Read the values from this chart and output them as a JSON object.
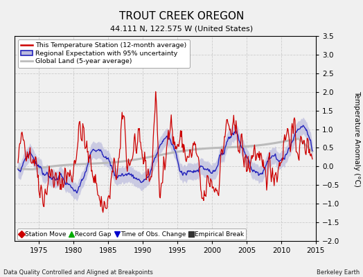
{
  "title": "TROUT CREEK OREGON",
  "subtitle": "44.111 N, 122.575 W (United States)",
  "footer_left": "Data Quality Controlled and Aligned at Breakpoints",
  "footer_right": "Berkeley Earth",
  "ylabel": "Temperature Anomaly (°C)",
  "xlim": [
    1971.5,
    2015
  ],
  "ylim": [
    -2.0,
    3.5
  ],
  "yticks": [
    -2.0,
    -1.5,
    -1.0,
    -0.5,
    0.0,
    0.5,
    1.0,
    1.5,
    2.0,
    2.5,
    3.0,
    3.5
  ],
  "xticks": [
    1975,
    1980,
    1985,
    1990,
    1995,
    2000,
    2005,
    2010,
    2015
  ],
  "bg_color": "#f0f0f0",
  "plot_bg": "#f0f0f0",
  "grid_color": "#cccccc",
  "station_color": "#cc0000",
  "regional_color": "#2222bb",
  "regional_fill_color": "#bbbbdd",
  "global_color": "#bbbbbb",
  "legend1_items": [
    {
      "label": "This Temperature Station (12-month average)",
      "color": "#cc0000"
    },
    {
      "label": "Regional Expectation with 95% uncertainty",
      "color": "#2222bb"
    },
    {
      "label": "Global Land (5-year average)",
      "color": "#bbbbbb"
    }
  ],
  "legend2_items": [
    {
      "label": "Station Move",
      "marker": "D",
      "color": "#cc0000"
    },
    {
      "label": "Record Gap",
      "marker": "^",
      "color": "#00aa00"
    },
    {
      "label": "Time of Obs. Change",
      "marker": "v",
      "color": "#0000cc"
    },
    {
      "label": "Empirical Break",
      "marker": "s",
      "color": "#333333"
    }
  ]
}
